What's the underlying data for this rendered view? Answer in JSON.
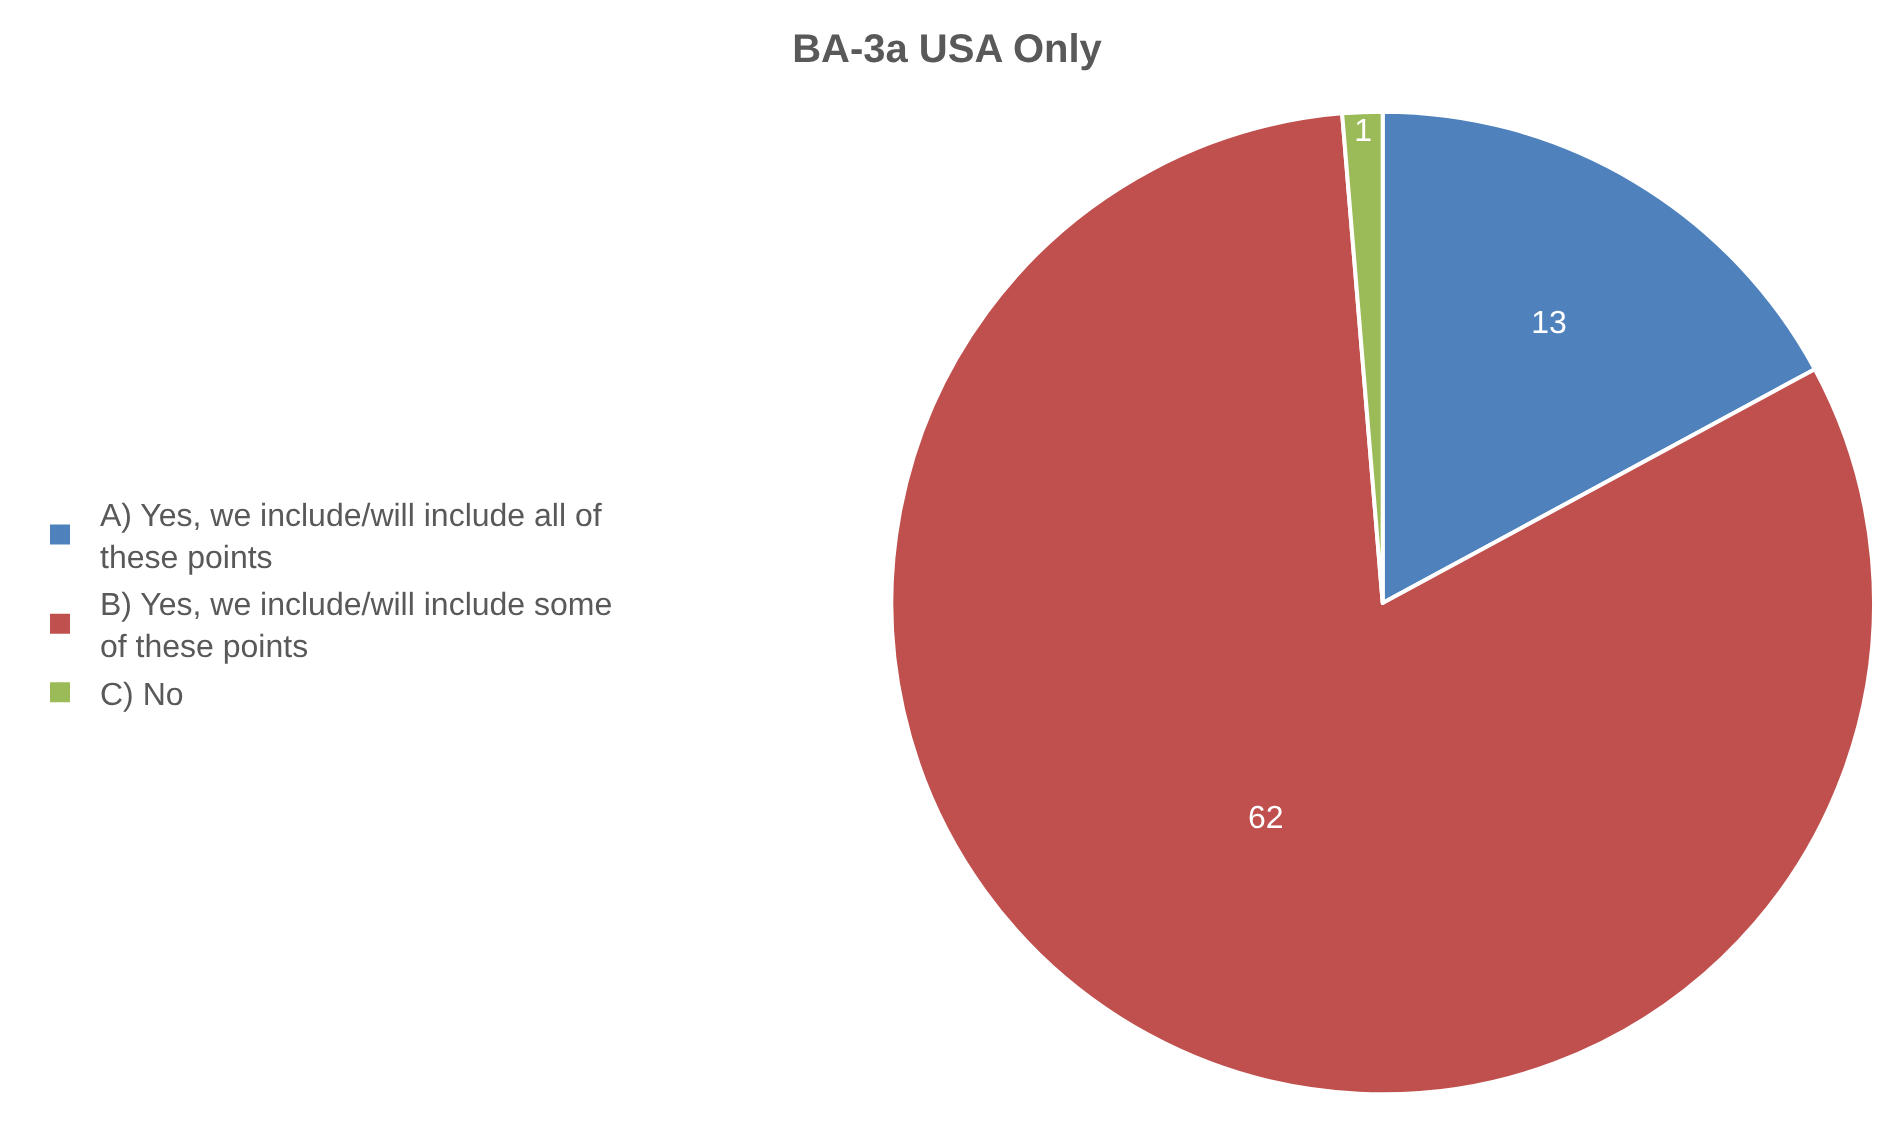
{
  "chart_data": {
    "type": "pie",
    "title": "BA-3a USA Only",
    "categories": [
      "A) Yes, we include/will include all of these points",
      "B) Yes, we include/will include some of these points",
      "C) No"
    ],
    "values": [
      13,
      62,
      1
    ],
    "colors": [
      "#4f81bd",
      "#c0504d",
      "#9bbb59"
    ],
    "data_labels": true,
    "legend": "left"
  }
}
